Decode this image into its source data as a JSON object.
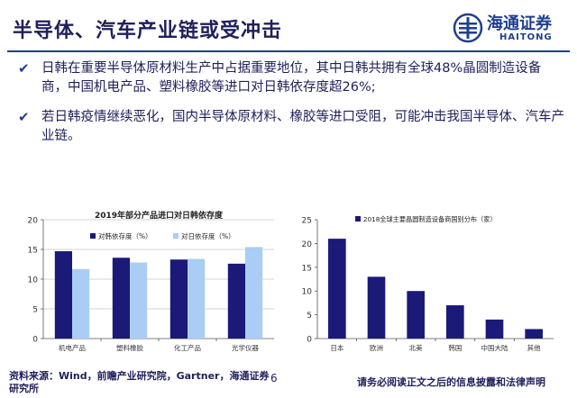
{
  "title": "半导体、汽车产业链或受冲击",
  "logo": {
    "cn": "海通证券",
    "en": "HAITONG"
  },
  "bullets": [
    "日韩在重要半导体原材料生产中占据重要地位，其中日韩共拥有全球48%晶圆制造设备商，中国机电产品、塑料橡胶等进口对日韩依存度超26%;",
    "若日韩疫情继续恶化，国内半导体原材料、橡胶等进口受阻，可能冲击我国半导体、汽车产业链。"
  ],
  "chart_data": [
    {
      "type": "bar",
      "title": "2019年部分产品进口对日韩依存度",
      "categories": [
        "机电产品",
        "塑料橡胶",
        "化工产品",
        "光学仪器"
      ],
      "series": [
        {
          "name": "对韩依存度（%）",
          "values": [
            14.7,
            13.6,
            13.3,
            12.6
          ],
          "color": "#1b1a78"
        },
        {
          "name": "对日依存度（%）",
          "values": [
            11.7,
            12.8,
            13.4,
            15.4
          ],
          "color": "#a9cdf4"
        }
      ],
      "ylim": [
        0,
        20
      ],
      "yticks": [
        "0",
        "5",
        "10",
        "15",
        "20"
      ],
      "grid": true,
      "legend": "top-center"
    },
    {
      "type": "bar",
      "title": "",
      "categories": [
        "日本",
        "欧洲",
        "北美",
        "韩国",
        "中国大陆",
        "其他"
      ],
      "series": [
        {
          "name": "2018全球主要晶圆制造设备商国别分布（家）",
          "values": [
            21,
            13,
            10,
            7,
            4,
            2
          ],
          "color": "#1b1a78"
        }
      ],
      "ylim": [
        0,
        25
      ],
      "yticks": [
        "0",
        "5",
        "10",
        "15",
        "20",
        "25"
      ],
      "grid": false,
      "legend": "top-left"
    }
  ],
  "footer": {
    "source": "资料来源：Wind，前瞻产业研究院，Gartner，海通证券研究所",
    "page": "6",
    "disclaimer": "请务必阅读正文之后的信息披露和法律声明"
  }
}
